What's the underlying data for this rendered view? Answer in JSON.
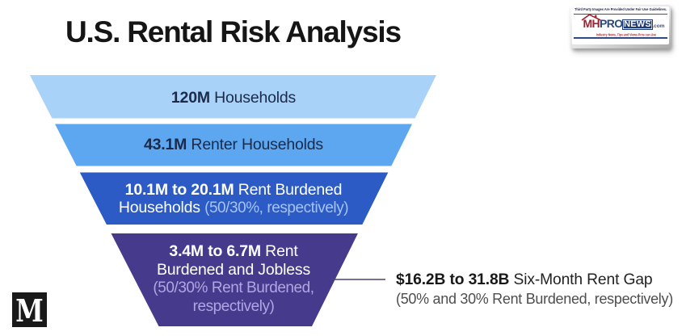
{
  "page": {
    "background": "#ffffff"
  },
  "title": "U.S. Rental Risk Analysis",
  "chart_data": {
    "type": "funnel",
    "title": "U.S. Rental Risk Analysis",
    "orientation": "inverted-pyramid",
    "stages": [
      {
        "value": "120M",
        "label": "Households",
        "full_text": "120M Households",
        "fill": "#a9d2f8",
        "text_color": "#1b2a4a",
        "note_color": "#1b2a4a",
        "lines": [
          [
            {
              "t": "120M",
              "role": "em"
            },
            {
              "t": " Households",
              "role": "base"
            }
          ]
        ]
      },
      {
        "value": "43.1M",
        "label": "Renter Households",
        "full_text": "43.1M Renter Households",
        "fill": "#5ca7f0",
        "text_color": "#1b2a4a",
        "note_color": "#1b2a4a",
        "lines": [
          [
            {
              "t": "43.1M",
              "role": "em"
            },
            {
              "t": " Renter Households",
              "role": "base"
            }
          ]
        ]
      },
      {
        "value": "10.1M to 20.1M",
        "label": "Rent Burdened Households",
        "note": "(50/30%, respectively)",
        "full_text": "10.1M to 20.1M Rent Burdened Households (50/30%, respectively)",
        "fill": "#2d5bc5",
        "text_color": "#ffffff",
        "note_color": "#a6c4f1",
        "lines": [
          [
            {
              "t": "10.1M to 20.1M",
              "role": "em"
            },
            {
              "t": " Rent Burdened",
              "role": "base"
            }
          ],
          [
            {
              "t": "Households ",
              "role": "base"
            },
            {
              "t": "(50/30%, respectively)",
              "role": "note"
            }
          ]
        ]
      },
      {
        "value": "3.4M to 6.7M",
        "label": "Rent Burdened and Jobless",
        "note": "(50/30% Rent Burdened, respectively)",
        "full_text": "3.4M to 6.7M Rent Burdened and Jobless (50/30% Rent Burdened, respectively)",
        "fill": "#463a8d",
        "text_color": "#ffffff",
        "note_color": "#b1a5e2",
        "lines": [
          [
            {
              "t": "3.4M to 6.7M",
              "role": "em"
            },
            {
              "t": " Rent",
              "role": "base"
            }
          ],
          [
            {
              "t": "Burdened and Jobless",
              "role": "base"
            }
          ],
          [
            {
              "t": "(50/30% Rent Burdened,",
              "role": "note"
            }
          ],
          [
            {
              "t": "respectively)",
              "role": "note"
            }
          ]
        ]
      }
    ],
    "annotation": {
      "value": "$16.2B to 31.8B",
      "label": " Six-Month Rent Gap",
      "note": "(50% and 30% Rent Burdened, respectively)",
      "connector_color": "#4a4470"
    }
  },
  "watermark": {
    "disclaimer": "Third Party Images Are Provided Under Fair Use Guidelines.",
    "brand_mh": "MH",
    "brand_pro": "PRO",
    "brand_news": "NEWS",
    "brand_tld": ".com",
    "tagline": "Industry News, Tips and Views Pros can Use",
    "red": "#9c2430",
    "navy": "#1e3a72"
  },
  "medium_badge": {
    "letter": "M",
    "bg": "#191919"
  }
}
